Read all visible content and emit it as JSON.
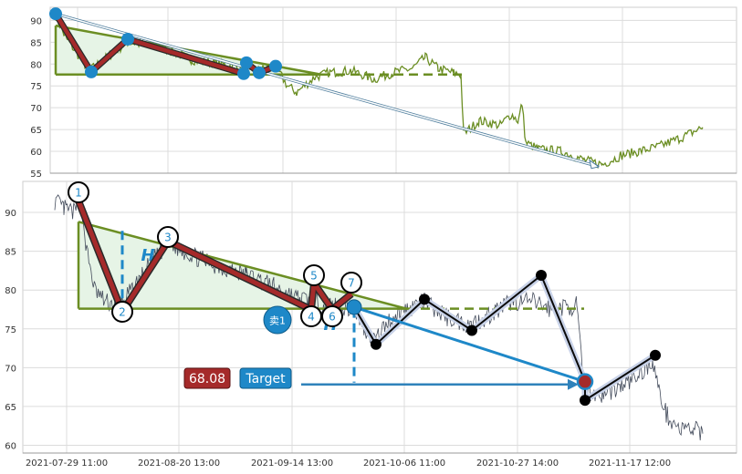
{
  "chart_data": [
    {
      "panel": "overview",
      "type": "line",
      "ylim": [
        55,
        93
      ],
      "yticks": [
        55,
        60,
        65,
        70,
        75,
        80,
        85,
        90
      ],
      "grid": true,
      "colors": {
        "price_line": "#6b8e23",
        "pattern": "#a52a2a",
        "marker": "#1e88c8",
        "trend": "#4a7a9a",
        "triangle_fill": "#e6f4e6"
      },
      "pattern_points": [
        {
          "i": 1,
          "y": 91.5
        },
        {
          "i": 2,
          "y": 78.2
        },
        {
          "i": 3,
          "y": 85.7
        },
        {
          "i": 4,
          "y": 77.8
        },
        {
          "i": 5,
          "y": 80.3
        },
        {
          "i": 6,
          "y": 78.0
        },
        {
          "i": 7,
          "y": 79.5
        }
      ],
      "triangle": {
        "top": 88.8,
        "base": 77.6
      },
      "trend_end_y": 56.5
    },
    {
      "panel": "detail",
      "type": "line",
      "ylim": [
        59,
        94
      ],
      "yticks": [
        60,
        65,
        70,
        75,
        80,
        85,
        90
      ],
      "grid": true,
      "x_tick_labels": [
        "2021-07-29 11:00",
        "2021-08-20 13:00",
        "2021-09-14 13:00",
        "2021-10-06 11:00",
        "2021-10-27 14:00",
        "2021-11-17 12:00"
      ],
      "pattern_points": [
        {
          "label": "1",
          "y": 91.5
        },
        {
          "label": "2",
          "y": 77.2
        },
        {
          "label": "3",
          "y": 86.3
        },
        {
          "label": "4",
          "y": 77.5
        },
        {
          "label": "5",
          "y": 80.9
        },
        {
          "label": "6",
          "y": 77.5
        },
        {
          "label": "7",
          "y": 79.5
        }
      ],
      "projection_points": [
        {
          "y": 77.8
        },
        {
          "y": 73.0
        },
        {
          "y": 78.8
        },
        {
          "y": 74.8
        },
        {
          "y": 81.9
        },
        {
          "y": 68.2
        },
        {
          "y": 65.8
        },
        {
          "y": 71.6
        }
      ],
      "triangle": {
        "top": 88.8,
        "base": 77.6
      },
      "height_marker": "H",
      "sell_badge": "卖1",
      "target_value": "68.08",
      "target_label": "Target",
      "target_y": 68.08,
      "colors": {
        "price_line": "#444c5c",
        "pattern": "#a52a2a",
        "projection": "#0a0a0a",
        "marker": "#1e88c8",
        "target_box": "#a52a2a",
        "label_box": "#1e88c8"
      }
    }
  ]
}
